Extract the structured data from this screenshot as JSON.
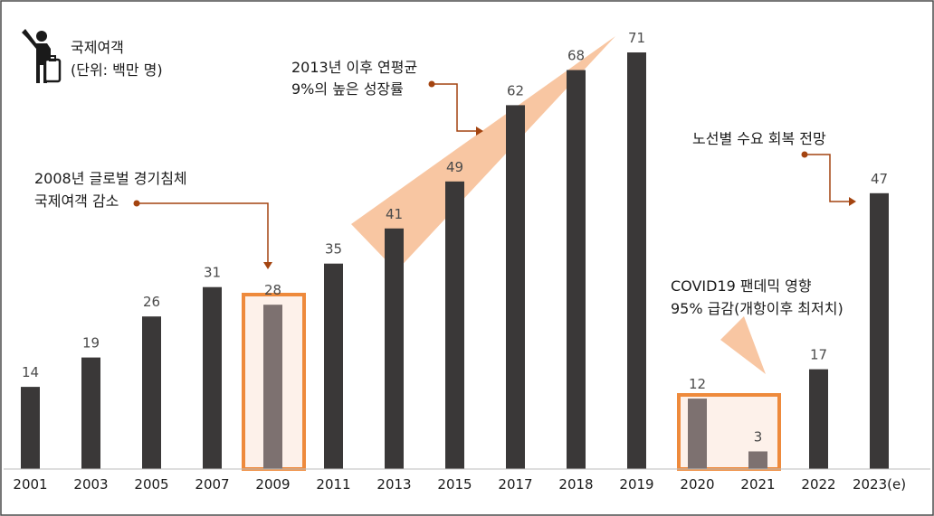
{
  "chart_data": {
    "type": "bar",
    "categories": [
      "2001",
      "2003",
      "2005",
      "2007",
      "2009",
      "2011",
      "2013",
      "2015",
      "2017",
      "2018",
      "2019",
      "2020",
      "2021",
      "2022",
      "2023(e)"
    ],
    "values": [
      14,
      19,
      26,
      31,
      28,
      35,
      41,
      49,
      62,
      68,
      71,
      12,
      3,
      17,
      47
    ],
    "highlighted": [
      "2009",
      "2020",
      "2021"
    ],
    "ylim": [
      0,
      71
    ],
    "legend": {
      "label": "국제여객",
      "unit": "(단위: 백만 명)",
      "icon": "traveler-icon"
    },
    "annotations": {
      "crisis_2008": [
        "2008년 글로벌 경기침체",
        "국제여객 감소"
      ],
      "growth": [
        "2013년 이후 연평균",
        "9%의 높은 성장률"
      ],
      "covid": [
        "COVID19 팬데믹 영향",
        "95% 급감(개항이후 최저치)"
      ],
      "recovery": [
        "노선별 수요 회복 전망"
      ]
    }
  },
  "colors": {
    "bar": "#3a3838",
    "bar_highlight": "#7d7170",
    "accent": "#ee8a3c",
    "wedge": "#f8c6a2",
    "box_fill": "#fdf1ea",
    "arrow": "#a44410",
    "frame": "#4a4a4a"
  }
}
